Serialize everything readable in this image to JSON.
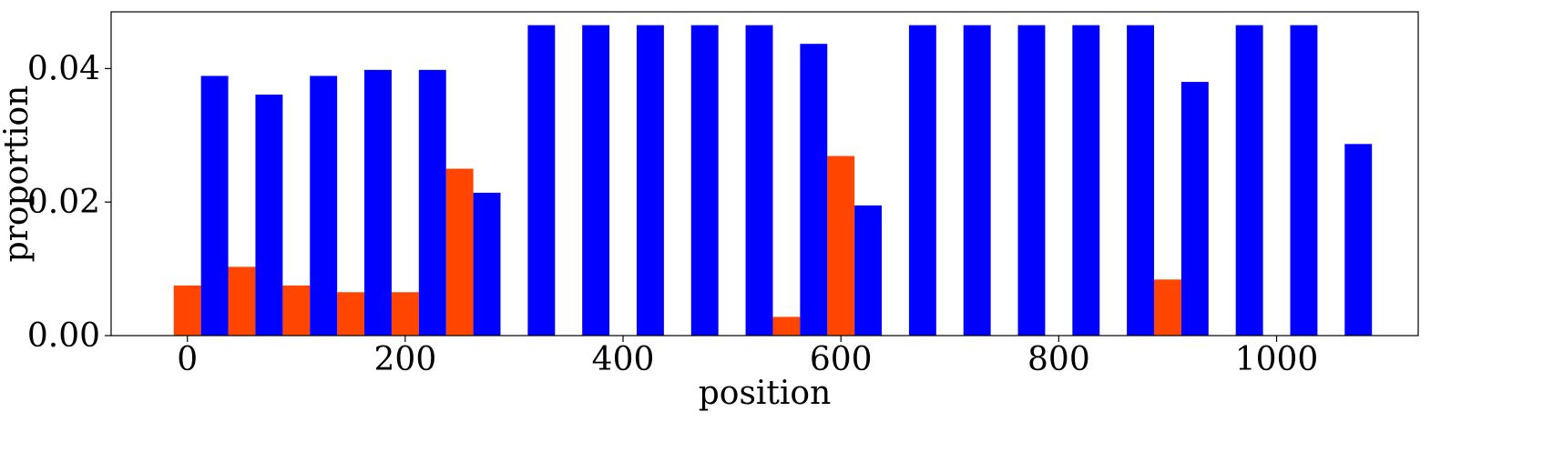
{
  "chart_data": {
    "type": "bar",
    "xlabel": "position",
    "ylabel": "proportion",
    "xlim": [
      -70,
      1130
    ],
    "ylim": [
      0,
      0.0485
    ],
    "bar_width": 25,
    "x_ticks": [
      0,
      200,
      400,
      600,
      800,
      1000
    ],
    "x_tick_labels": [
      "0",
      "200",
      "400",
      "600",
      "800",
      "1000"
    ],
    "y_ticks": [
      0.0,
      0.02,
      0.04
    ],
    "y_tick_labels": [
      "0.00",
      "0.02",
      "0.04"
    ],
    "grid": false,
    "legend": "none",
    "series": [
      {
        "color": "#ff4500",
        "points": [
          {
            "x": 0,
            "y": 0.0075
          },
          {
            "x": 50,
            "y": 0.0103
          },
          {
            "x": 100,
            "y": 0.0075
          },
          {
            "x": 150,
            "y": 0.0065
          },
          {
            "x": 200,
            "y": 0.0065
          },
          {
            "x": 250,
            "y": 0.025
          },
          {
            "x": 550,
            "y": 0.0028
          },
          {
            "x": 600,
            "y": 0.0269
          },
          {
            "x": 900,
            "y": 0.0084
          }
        ]
      },
      {
        "color": "#0000ff",
        "points": [
          {
            "x": 25,
            "y": 0.0389
          },
          {
            "x": 75,
            "y": 0.0361
          },
          {
            "x": 125,
            "y": 0.0389
          },
          {
            "x": 175,
            "y": 0.0398
          },
          {
            "x": 225,
            "y": 0.0398
          },
          {
            "x": 275,
            "y": 0.0214
          },
          {
            "x": 325,
            "y": 0.0465
          },
          {
            "x": 375,
            "y": 0.0465
          },
          {
            "x": 425,
            "y": 0.0465
          },
          {
            "x": 475,
            "y": 0.0465
          },
          {
            "x": 525,
            "y": 0.0465
          },
          {
            "x": 575,
            "y": 0.0437
          },
          {
            "x": 625,
            "y": 0.0195
          },
          {
            "x": 675,
            "y": 0.0465
          },
          {
            "x": 725,
            "y": 0.0465
          },
          {
            "x": 775,
            "y": 0.0465
          },
          {
            "x": 825,
            "y": 0.0465
          },
          {
            "x": 875,
            "y": 0.0465
          },
          {
            "x": 925,
            "y": 0.038
          },
          {
            "x": 975,
            "y": 0.0465
          },
          {
            "x": 1025,
            "y": 0.0465
          },
          {
            "x": 1075,
            "y": 0.0287
          }
        ]
      }
    ]
  }
}
